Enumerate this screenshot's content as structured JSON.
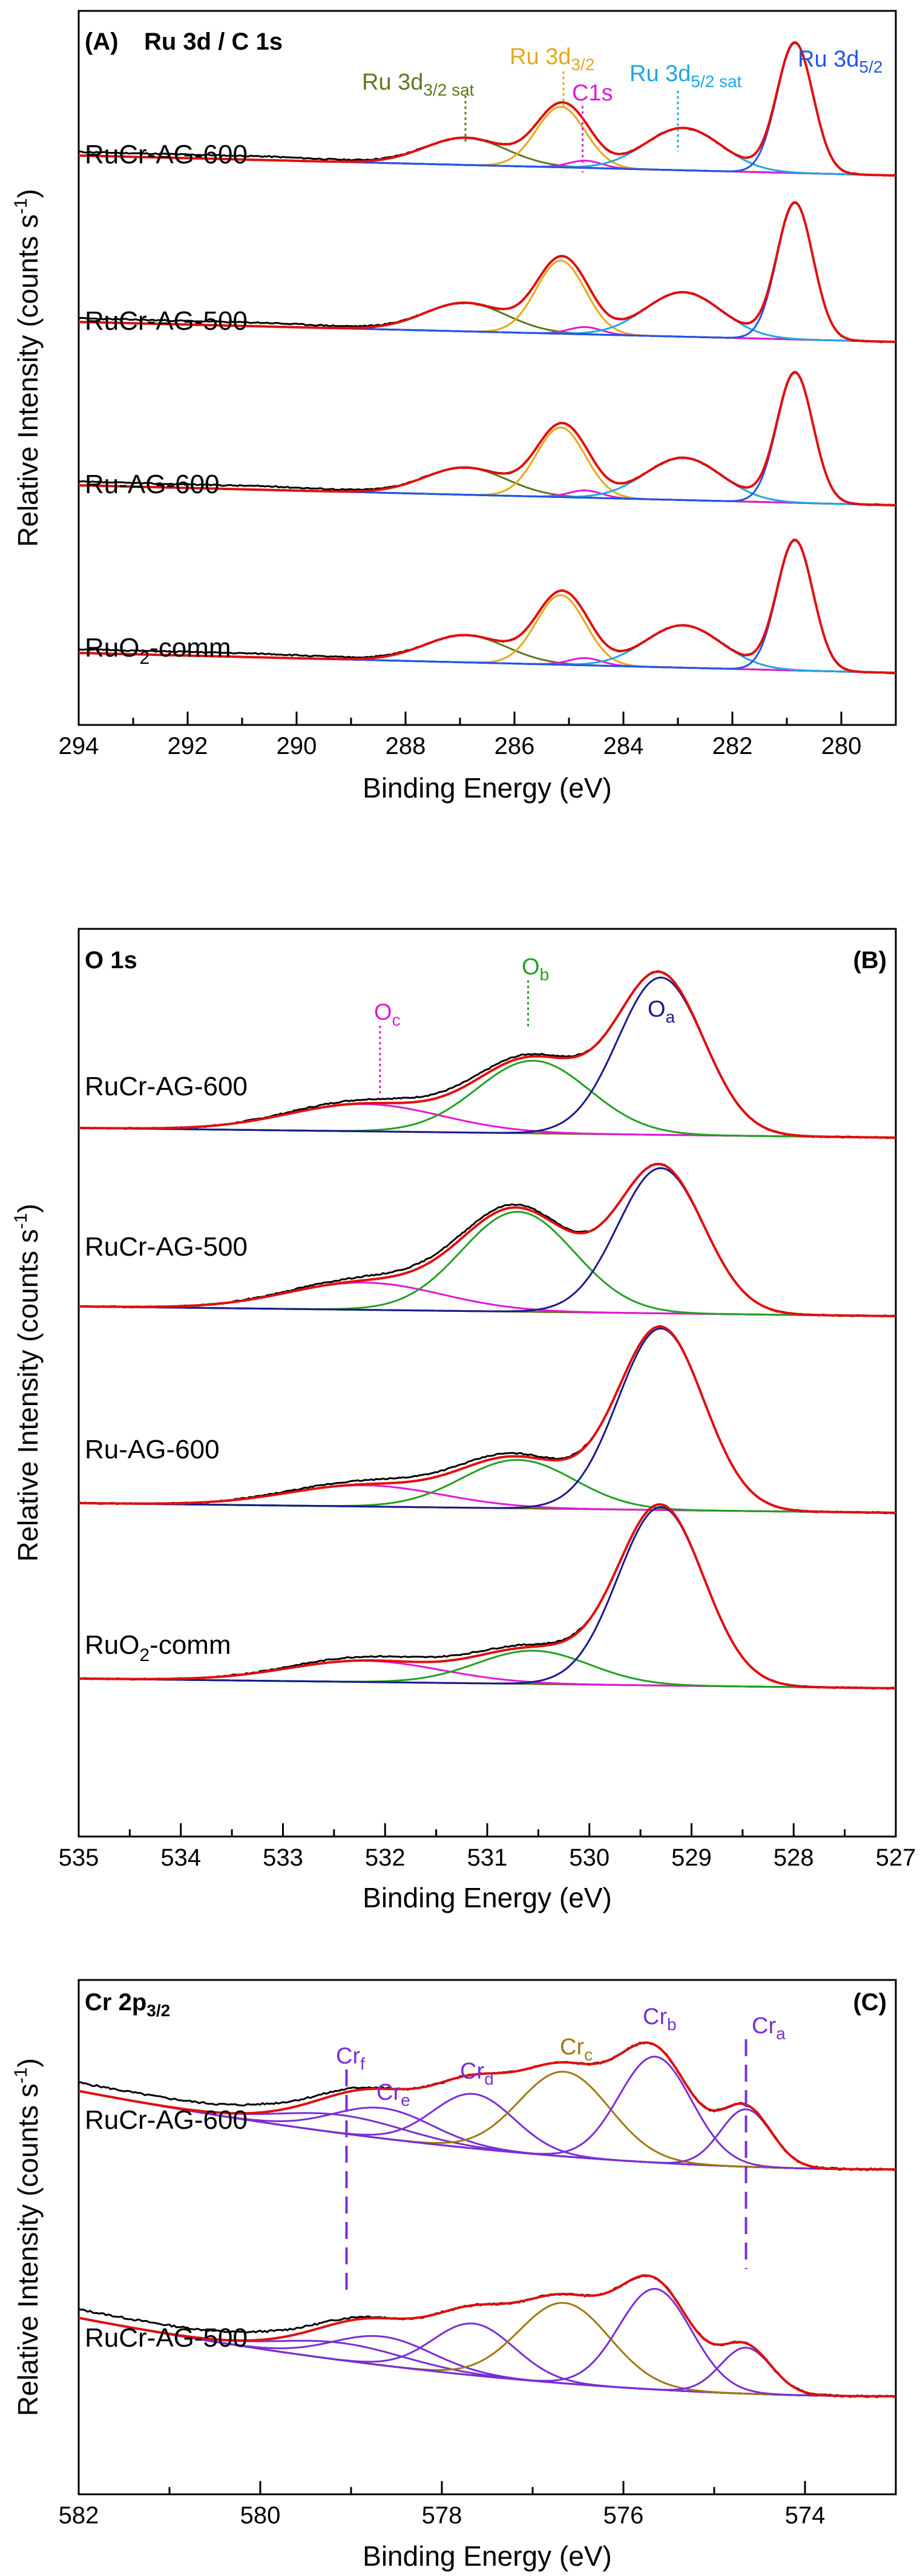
{
  "chart_data": [
    {
      "type": "line",
      "panel": "(A)",
      "title": "Ru 3d / C 1s",
      "xlabel": "Binding Energy (eV)",
      "ylabel": "Relative Intensity (counts s⁻¹)",
      "xlim": [
        294,
        279
      ],
      "xticks": [
        294,
        292,
        290,
        288,
        286,
        284,
        282,
        280
      ],
      "samples": [
        "RuCr-AG-600",
        "RuCr-AG-500",
        "Ru-AG-600",
        "RuO₂-comm"
      ],
      "components": [
        {
          "name": "Ru 3d3/2 sat",
          "color": "#5a7a1e",
          "center": 286.9,
          "dashed_marker": true
        },
        {
          "name": "Ru 3d3/2",
          "color": "#e6a817",
          "center": 285.2,
          "dashed_marker": true
        },
        {
          "name": "C1s",
          "color": "#e01ad6",
          "center": 284.8,
          "dashed_marker": true
        },
        {
          "name": "Ru 3d5/2 sat",
          "color": "#1ea6e6",
          "center": 283.0,
          "dashed_marker": true
        },
        {
          "name": "Ru 3d5/2",
          "color": "#2255e6",
          "center": 280.9,
          "dashed_marker": false
        }
      ],
      "grid": false
    },
    {
      "type": "line",
      "panel": "(B)",
      "title": "O 1s",
      "xlabel": "Binding Energy (eV)",
      "ylabel": "Relative Intensity (counts s⁻¹)",
      "xlim": [
        535,
        527
      ],
      "xticks": [
        535,
        534,
        533,
        532,
        531,
        530,
        529,
        528,
        527
      ],
      "samples": [
        "RuCr-AG-600",
        "RuCr-AG-500",
        "Ru-AG-600",
        "RuO₂-comm"
      ],
      "components": [
        {
          "name": "Oc",
          "color": "#e01ad6",
          "center": 532.1
        },
        {
          "name": "Ob",
          "color": "#22a122",
          "center": 530.6
        },
        {
          "name": "Oa",
          "color": "#1a1a8c",
          "center": 529.3
        }
      ],
      "grid": false
    },
    {
      "type": "line",
      "panel": "(C)",
      "title": "Cr 2p3/2",
      "xlabel": "Binding Energy (eV)",
      "ylabel": "Relative Intensity (counts s⁻¹)",
      "xlim": [
        582,
        573
      ],
      "xticks": [
        582,
        580,
        578,
        576,
        574
      ],
      "samples": [
        "RuCr-AG-600",
        "RuCr-AG-500"
      ],
      "components": [
        {
          "name": "Crf",
          "color": "#7a2ed6",
          "center": 579.1
        },
        {
          "name": "Cre",
          "color": "#7a2ed6",
          "center": 578.6
        },
        {
          "name": "Crd",
          "color": "#7a2ed6",
          "center": 577.7
        },
        {
          "name": "Crc",
          "color": "#a07a10",
          "center": 576.7
        },
        {
          "name": "Crb",
          "color": "#7a2ed6",
          "center": 575.7
        },
        {
          "name": "Cra",
          "color": "#7a2ed6",
          "center": 574.65
        }
      ],
      "grid": false
    }
  ],
  "text": {
    "panelA": {
      "label": "(A)",
      "title": "Ru 3d / C 1s",
      "s1": "RuCr-AG-600",
      "s2": "RuCr-AG-500",
      "s3": "Ru-AG-600",
      "s4_main": "RuO",
      "s4_sub": "2",
      "s4_tail": "-comm",
      "a_sat32": "Ru 3d",
      "a_sat32_sub": "3/2 sat",
      "a_32": "Ru 3d",
      "a_32_sub": "3/2",
      "a_c1s": "C1s",
      "a_sat52": "Ru 3d",
      "a_sat52_sub": "5/2 sat",
      "a_52": "Ru 3d",
      "a_52_sub": "5/2",
      "xlabel": "Binding Energy (eV)",
      "ylabel_main": "Relative Intensity  (counts s",
      "ylabel_sup": "-1",
      "ylabel_end": ")"
    },
    "panelB": {
      "label": "(B)",
      "title": "O 1s",
      "s1": "RuCr-AG-600",
      "s2": "RuCr-AG-500",
      "s3": "Ru-AG-600",
      "s4_main": "RuO",
      "s4_sub": "2",
      "s4_tail": "-comm",
      "oc": "O",
      "oc_sub": "c",
      "ob": "O",
      "ob_sub": "b",
      "oa": "O",
      "oa_sub": "a",
      "xlabel": "Binding Energy (eV)",
      "ylabel_main": "Relative Intensity  (counts s",
      "ylabel_sup": "-1",
      "ylabel_end": ")"
    },
    "panelC": {
      "label": "(C)",
      "title_main": "Cr 2p",
      "title_sub": "3/2",
      "s1": "RuCr-AG-600",
      "s2": "RuCr-AG-500",
      "cr": "Cr",
      "f": "f",
      "e": "e",
      "d": "d",
      "c": "c",
      "b": "b",
      "a": "a",
      "xlabel": "Binding Energy (eV)",
      "ylabel_main": "Relative Intensity  (counts s",
      "ylabel_sup": "-1",
      "ylabel_end": ")"
    }
  },
  "colors": {
    "raw": "#000000",
    "envelope": "#e01010",
    "background": "#6b6b1e"
  }
}
